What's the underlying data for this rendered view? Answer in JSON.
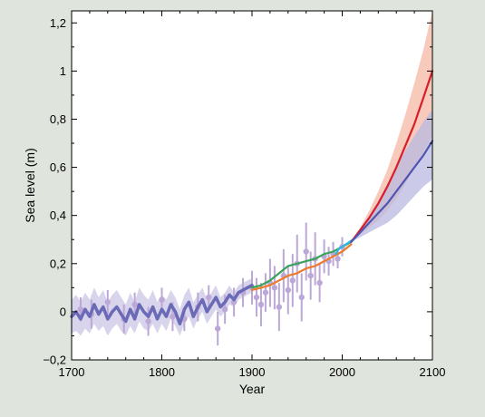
{
  "chart_data": {
    "type": "line",
    "xlabel": "Year",
    "ylabel": "Sea level (m)",
    "xlim": [
      1700,
      2100
    ],
    "ylim": [
      -0.2,
      1.25
    ],
    "x_ticks": [
      1700,
      1800,
      1900,
      2000,
      2100
    ],
    "y_ticks": [
      -0.2,
      0,
      0.2,
      0.4,
      0.6,
      0.8,
      1,
      1.2
    ],
    "x_tick_labels": [
      "1700",
      "1800",
      "1900",
      "2000",
      "2100"
    ],
    "y_tick_labels": [
      "−0,2",
      "0",
      "0,2",
      "0,4",
      "0,6",
      "0,8",
      "1",
      "1,2"
    ],
    "grid": false,
    "background": "#ffffff",
    "page_background": "#dfe4dd",
    "series": [
      {
        "color": "#6a6ab6",
        "style": "thick line with light shaded uncertainty band",
        "band_color": "#c9c6e6",
        "x": [
          1700,
          1705,
          1710,
          1715,
          1720,
          1725,
          1730,
          1735,
          1740,
          1745,
          1750,
          1755,
          1760,
          1765,
          1770,
          1775,
          1780,
          1785,
          1790,
          1795,
          1800,
          1805,
          1810,
          1815,
          1820,
          1825,
          1830,
          1835,
          1840,
          1845,
          1850,
          1855,
          1860,
          1865,
          1870,
          1875,
          1880,
          1885,
          1890,
          1895,
          1900
        ],
        "y": [
          -0.02,
          0.0,
          -0.03,
          0.01,
          -0.02,
          0.03,
          -0.01,
          0.02,
          -0.03,
          0.0,
          0.02,
          -0.01,
          -0.04,
          0.01,
          -0.03,
          0.03,
          0.0,
          -0.02,
          0.02,
          -0.03,
          0.01,
          -0.02,
          0.03,
          0.0,
          -0.05,
          0.01,
          0.04,
          -0.02,
          0.02,
          0.05,
          0.0,
          0.03,
          0.06,
          0.02,
          0.04,
          0.07,
          0.05,
          0.08,
          0.09,
          0.1,
          0.11
        ],
        "band_lower": [
          -0.09,
          -0.08,
          -0.1,
          -0.07,
          -0.09,
          -0.05,
          -0.08,
          -0.06,
          -0.1,
          -0.07,
          -0.05,
          -0.08,
          -0.1,
          -0.06,
          -0.09,
          -0.04,
          -0.07,
          -0.08,
          -0.05,
          -0.09,
          -0.05,
          -0.08,
          -0.03,
          -0.06,
          -0.1,
          -0.05,
          -0.02,
          -0.07,
          -0.03,
          0.0,
          -0.05,
          -0.02,
          0.01,
          -0.02,
          0.0,
          0.03,
          0.02,
          0.05,
          0.06,
          0.07,
          0.08
        ],
        "band_upper": [
          0.05,
          0.07,
          0.04,
          0.08,
          0.05,
          0.1,
          0.06,
          0.09,
          0.04,
          0.07,
          0.09,
          0.06,
          0.03,
          0.08,
          0.04,
          0.1,
          0.07,
          0.05,
          0.09,
          0.04,
          0.07,
          0.05,
          0.09,
          0.06,
          0.01,
          0.07,
          0.1,
          0.04,
          0.07,
          0.1,
          0.05,
          0.08,
          0.11,
          0.06,
          0.08,
          0.11,
          0.08,
          0.11,
          0.12,
          0.13,
          0.14
        ]
      },
      {
        "color": "#bca8d6",
        "style": "scattered points with error bars",
        "x": [
          1710,
          1722,
          1740,
          1758,
          1770,
          1785,
          1800,
          1812,
          1825,
          1840,
          1852,
          1862,
          1870,
          1880,
          1890,
          1900,
          1905,
          1910,
          1915,
          1920,
          1925,
          1930,
          1935,
          1940,
          1945,
          1950,
          1955,
          1960,
          1965,
          1970,
          1975,
          1980,
          1985,
          1990,
          1995,
          2000
        ],
        "y": [
          0.01,
          -0.01,
          0.04,
          -0.03,
          0.03,
          -0.04,
          0.05,
          -0.02,
          -0.03,
          0.02,
          0.06,
          -0.07,
          0.01,
          0.04,
          0.08,
          0.1,
          0.06,
          0.03,
          0.08,
          0.12,
          0.1,
          0.02,
          0.15,
          0.09,
          0.13,
          0.2,
          0.06,
          0.25,
          0.15,
          0.22,
          0.12,
          0.23,
          0.21,
          0.24,
          0.22,
          0.27
        ],
        "err": [
          0.05,
          0.06,
          0.05,
          0.06,
          0.05,
          0.06,
          0.05,
          0.06,
          0.05,
          0.06,
          0.05,
          0.07,
          0.06,
          0.06,
          0.06,
          0.07,
          0.08,
          0.09,
          0.08,
          0.1,
          0.09,
          0.1,
          0.11,
          0.1,
          0.11,
          0.12,
          0.1,
          0.12,
          0.1,
          0.11,
          0.08,
          0.07,
          0.06,
          0.05,
          0.04,
          0.04
        ]
      },
      {
        "color": "#3aa35a",
        "style": "line",
        "x": [
          1900,
          1910,
          1920,
          1930,
          1940,
          1950,
          1960,
          1970,
          1980,
          1990,
          2000,
          2010
        ],
        "y": [
          0.1,
          0.11,
          0.13,
          0.16,
          0.19,
          0.2,
          0.21,
          0.22,
          0.24,
          0.25,
          0.27,
          0.29
        ]
      },
      {
        "color": "#ee7a2c",
        "style": "line",
        "x": [
          1900,
          1910,
          1920,
          1930,
          1940,
          1950,
          1960,
          1970,
          1980,
          1990,
          2000,
          2010
        ],
        "y": [
          0.09,
          0.1,
          0.11,
          0.13,
          0.15,
          0.16,
          0.18,
          0.19,
          0.21,
          0.23,
          0.25,
          0.28
        ]
      },
      {
        "color": "#2fb6e6",
        "style": "line",
        "x": [
          1993,
          1996,
          2000,
          2004,
          2008,
          2012
        ],
        "y": [
          0.24,
          0.26,
          0.27,
          0.28,
          0.29,
          0.3
        ]
      },
      {
        "color": "#d81e2a",
        "style": "projection line with shaded uncertainty band",
        "band_color": "#f4b8a5",
        "x": [
          2010,
          2020,
          2030,
          2040,
          2050,
          2060,
          2070,
          2080,
          2090,
          2100
        ],
        "y": [
          0.29,
          0.34,
          0.39,
          0.45,
          0.52,
          0.6,
          0.69,
          0.78,
          0.89,
          1.0
        ],
        "band_lower": [
          0.29,
          0.32,
          0.35,
          0.38,
          0.42,
          0.47,
          0.53,
          0.6,
          0.66,
          0.73
        ],
        "band_upper": [
          0.29,
          0.35,
          0.42,
          0.5,
          0.59,
          0.7,
          0.82,
          0.95,
          1.09,
          1.25
        ]
      },
      {
        "color": "#4f55b0",
        "style": "projection line with shaded uncertainty band",
        "band_color": "#b9b9e2",
        "x": [
          2010,
          2020,
          2030,
          2040,
          2050,
          2060,
          2070,
          2080,
          2090,
          2100
        ],
        "y": [
          0.29,
          0.33,
          0.37,
          0.41,
          0.45,
          0.5,
          0.55,
          0.6,
          0.65,
          0.71
        ],
        "band_lower": [
          0.29,
          0.31,
          0.33,
          0.35,
          0.37,
          0.4,
          0.44,
          0.48,
          0.52,
          0.55
        ],
        "band_upper": [
          0.29,
          0.34,
          0.4,
          0.46,
          0.53,
          0.6,
          0.67,
          0.73,
          0.79,
          0.84
        ]
      }
    ]
  }
}
